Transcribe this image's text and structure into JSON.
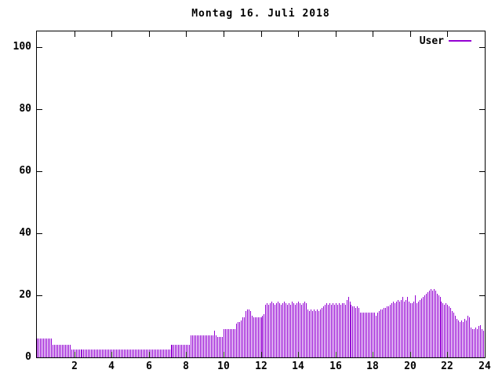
{
  "title": "Montag 16. Juli 2018",
  "legend": {
    "label": "User"
  },
  "colors": {
    "series": "#9400D3",
    "axis": "#000000",
    "background": "#ffffff",
    "text": "#000000"
  },
  "chart_data": {
    "type": "bar",
    "style": "impulses",
    "title": "Montag 16. Juli 2018",
    "series_name": "User",
    "xlabel": "",
    "ylabel": "",
    "x_unit": "hour of day",
    "x_start": 0,
    "samples_per_hour": 12,
    "x_interval_minutes": 5,
    "xlim": [
      0,
      24
    ],
    "ylim": [
      0,
      105
    ],
    "xticks": [
      2,
      4,
      6,
      8,
      10,
      12,
      14,
      16,
      18,
      20,
      22,
      24
    ],
    "yticks": [
      0,
      20,
      40,
      60,
      80,
      100
    ],
    "grid": false,
    "legend_position": "top-right-inside",
    "values": [
      6,
      6,
      6,
      6,
      6,
      6,
      6,
      6,
      6,
      6,
      4,
      4,
      4,
      4,
      4,
      4,
      4,
      4,
      4,
      4,
      4,
      4,
      2.5,
      2.5,
      2.5,
      2.5,
      2.5,
      2.5,
      2.5,
      2.5,
      2.5,
      2.5,
      2.5,
      2.5,
      2.5,
      2.5,
      2.5,
      2.5,
      2.5,
      2.5,
      2.5,
      2.5,
      2.5,
      2.5,
      2.5,
      2.5,
      2.5,
      2.5,
      2.5,
      2.5,
      2.5,
      2.5,
      2.5,
      2.5,
      2.5,
      2.5,
      2.5,
      2.5,
      2.5,
      2.5,
      2.5,
      2.5,
      2.5,
      2.5,
      2.5,
      2.5,
      2.5,
      2.5,
      2.5,
      2.5,
      2.5,
      2.5,
      2.5,
      2.5,
      2.5,
      2.5,
      2.5,
      2.5,
      2.5,
      2.5,
      2.5,
      2.5,
      2.5,
      2.5,
      2.5,
      2.5,
      4,
      4,
      4,
      4,
      4,
      4,
      4,
      4,
      4,
      4,
      4,
      4,
      4,
      7,
      7,
      7,
      7,
      7,
      7,
      7,
      7,
      7,
      7,
      7,
      7,
      7,
      7,
      7,
      8.5,
      7,
      6.5,
      6.5,
      6.5,
      6.5,
      9,
      9,
      9,
      9,
      9,
      9,
      9,
      9,
      11,
      11.5,
      11.5,
      12,
      13,
      13,
      15,
      15.5,
      15.5,
      15,
      13.5,
      13,
      13,
      13,
      13,
      13,
      13,
      13.5,
      14,
      17,
      17.5,
      17,
      17.5,
      18,
      17.5,
      17,
      17.5,
      18,
      17.5,
      17,
      17.5,
      18,
      17.5,
      17,
      17.5,
      17,
      18,
      17.5,
      17,
      17.5,
      18,
      17.5,
      17,
      17.5,
      18,
      17.5,
      15.5,
      15,
      15.5,
      15,
      15.5,
      15,
      15.5,
      15,
      15.5,
      16,
      16.5,
      17,
      17.5,
      17,
      17.5,
      17,
      17.5,
      17,
      17.5,
      17,
      17.5,
      17,
      17.5,
      17.5,
      17,
      18.5,
      19.5,
      18,
      17,
      16.5,
      16.5,
      16,
      16.5,
      16,
      14.5,
      14.5,
      14.5,
      14.5,
      14.5,
      14.5,
      14.5,
      14.5,
      14.5,
      14.5,
      13.5,
      14.5,
      15,
      15.5,
      15.5,
      16,
      16,
      16.5,
      16.5,
      17,
      17.5,
      18,
      17.5,
      18,
      18.5,
      18,
      18.5,
      19.5,
      18,
      18.5,
      19.5,
      18,
      17.5,
      17.5,
      18,
      20,
      17.5,
      18,
      18.5,
      19,
      19.5,
      20,
      20.5,
      21,
      21.5,
      22,
      21.5,
      22,
      21.5,
      20.5,
      20,
      19.5,
      18,
      17.5,
      17,
      17.5,
      17,
      16.5,
      16,
      15,
      14.5,
      13.5,
      12.5,
      12,
      11.5,
      12,
      11.5,
      12.5,
      12,
      13.5,
      13,
      9.5,
      9,
      9,
      9.5,
      9,
      10,
      10.5,
      9,
      8.5
    ]
  }
}
